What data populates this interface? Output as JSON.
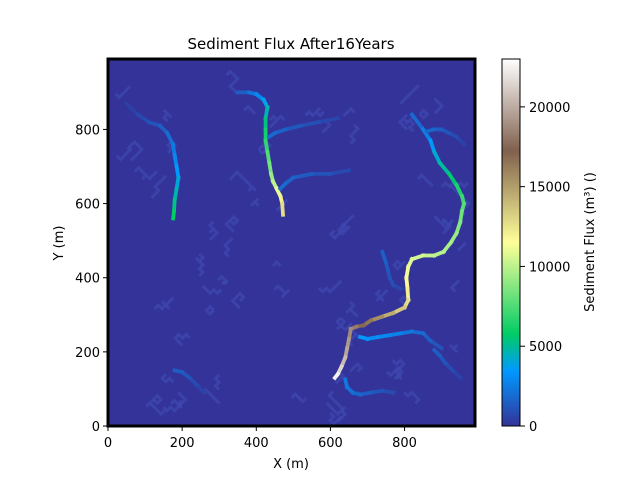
{
  "chart_data": {
    "type": "heatmap",
    "title": "Sediment Flux After16Years",
    "xlabel": "X (m)",
    "ylabel": "Y (m)",
    "xlim": [
      0,
      990
    ],
    "ylim": [
      0,
      990
    ],
    "xticks": [
      0,
      200,
      400,
      600,
      800
    ],
    "yticks": [
      0,
      200,
      400,
      600,
      800
    ],
    "colorbar": {
      "label": "Sediment Flux (m³) ()",
      "range": [
        0,
        23000
      ],
      "ticks": [
        0,
        5000,
        10000,
        15000,
        20000
      ],
      "colormap": "terrain",
      "background_color": "#333399"
    },
    "channels": [
      {
        "name": "channel-north-west",
        "points": [
          [
            50,
            870
          ],
          [
            80,
            840
          ],
          [
            110,
            820
          ],
          [
            140,
            810
          ],
          [
            160,
            790
          ],
          [
            175,
            760
          ],
          [
            180,
            730
          ],
          [
            185,
            700
          ],
          [
            190,
            670
          ],
          [
            185,
            640
          ],
          [
            180,
            610
          ],
          [
            178,
            580
          ],
          [
            176,
            560
          ]
        ],
        "flux": [
          300,
          600,
          900,
          1300,
          1700,
          2200,
          2700,
          3200,
          3700,
          4300,
          5000,
          5600,
          6000
        ]
      },
      {
        "name": "channel-north-central",
        "points": [
          [
            350,
            900
          ],
          [
            380,
            900
          ],
          [
            400,
            895
          ],
          [
            420,
            880
          ],
          [
            430,
            860
          ],
          [
            425,
            830
          ],
          [
            425,
            800
          ],
          [
            425,
            770
          ],
          [
            430,
            740
          ],
          [
            435,
            710
          ],
          [
            440,
            680
          ],
          [
            445,
            660
          ],
          [
            455,
            640
          ],
          [
            465,
            620
          ],
          [
            470,
            600
          ],
          [
            472,
            570
          ]
        ],
        "flux": [
          1200,
          1800,
          2500,
          3300,
          4200,
          5000,
          5800,
          6500,
          7200,
          8000,
          8800,
          9600,
          10500,
          11500,
          12500,
          13000
        ]
      },
      {
        "name": "channel-east-main",
        "points": [
          [
            820,
            840
          ],
          [
            850,
            800
          ],
          [
            870,
            770
          ],
          [
            880,
            740
          ],
          [
            895,
            710
          ],
          [
            920,
            680
          ],
          [
            940,
            650
          ],
          [
            955,
            620
          ],
          [
            960,
            600
          ],
          [
            955,
            580
          ],
          [
            950,
            550
          ],
          [
            940,
            520
          ],
          [
            925,
            495
          ],
          [
            905,
            470
          ],
          [
            880,
            460
          ],
          [
            850,
            460
          ],
          [
            820,
            450
          ],
          [
            810,
            430
          ],
          [
            805,
            400
          ],
          [
            808,
            370
          ],
          [
            810,
            340
          ],
          [
            800,
            320
          ],
          [
            770,
            305
          ],
          [
            740,
            295
          ],
          [
            710,
            285
          ],
          [
            690,
            272
          ],
          [
            670,
            268
          ],
          [
            655,
            262
          ],
          [
            650,
            235
          ],
          [
            645,
            210
          ],
          [
            640,
            185
          ],
          [
            630,
            160
          ],
          [
            620,
            140
          ],
          [
            612,
            130
          ]
        ],
        "flux": [
          1500,
          2200,
          3000,
          3800,
          4600,
          5300,
          6000,
          6800,
          7400,
          8000,
          8500,
          9000,
          9400,
          9700,
          10000,
          10300,
          10700,
          11000,
          11400,
          11800,
          12300,
          13000,
          14000,
          15000,
          16000,
          17000,
          18000,
          18500,
          19000,
          19500,
          20000,
          21000,
          22000,
          23000
        ]
      },
      {
        "name": "channel-south-tributary",
        "points": [
          [
            900,
            210
          ],
          [
            870,
            230
          ],
          [
            850,
            250
          ],
          [
            820,
            255
          ],
          [
            790,
            250
          ],
          [
            760,
            245
          ],
          [
            730,
            240
          ],
          [
            700,
            235
          ],
          [
            680,
            240
          ]
        ],
        "flux": [
          900,
          1300,
          1700,
          2100,
          2500,
          2800,
          3000,
          3200,
          3400
        ]
      },
      {
        "name": "channel-south-west-branch",
        "points": [
          [
            770,
            90
          ],
          [
            740,
            95
          ],
          [
            710,
            90
          ],
          [
            680,
            85
          ],
          [
            660,
            90
          ],
          [
            645,
            105
          ],
          [
            640,
            125
          ]
        ],
        "flux": [
          700,
          1000,
          1300,
          1600,
          1900,
          2200,
          2500
        ]
      },
      {
        "name": "channel-central-branch",
        "points": [
          [
            650,
            690
          ],
          [
            600,
            680
          ],
          [
            550,
            680
          ],
          [
            500,
            670
          ],
          [
            480,
            655
          ],
          [
            465,
            640
          ]
        ],
        "flux": [
          600,
          900,
          1200,
          1500,
          1800,
          2000
        ]
      },
      {
        "name": "channel-upper-branch",
        "points": [
          [
            620,
            830
          ],
          [
            570,
            820
          ],
          [
            520,
            810
          ],
          [
            480,
            800
          ],
          [
            450,
            790
          ],
          [
            435,
            780
          ]
        ],
        "flux": [
          500,
          800,
          1100,
          1400,
          1700,
          2000
        ]
      },
      {
        "name": "channel-east-upper-branch",
        "points": [
          [
            960,
            760
          ],
          [
            940,
            780
          ],
          [
            920,
            790
          ],
          [
            900,
            800
          ],
          [
            880,
            800
          ],
          [
            860,
            795
          ]
        ],
        "flux": [
          400,
          700,
          1000,
          1300,
          1600,
          1900
        ]
      },
      {
        "name": "channel-mid-east",
        "points": [
          [
            790,
            370
          ],
          [
            770,
            380
          ],
          [
            760,
            400
          ],
          [
            755,
            420
          ],
          [
            750,
            440
          ],
          [
            740,
            470
          ]
        ],
        "flux": [
          500,
          800,
          1000,
          1200,
          1400,
          1600
        ]
      },
      {
        "name": "channel-lower-west",
        "points": [
          [
            260,
            90
          ],
          [
            240,
            110
          ],
          [
            220,
            130
          ],
          [
            200,
            145
          ],
          [
            180,
            150
          ]
        ],
        "flux": [
          400,
          700,
          1000,
          1300,
          1600
        ]
      },
      {
        "name": "channel-lower-east",
        "points": [
          [
            950,
            130
          ],
          [
            930,
            150
          ],
          [
            910,
            170
          ],
          [
            895,
            190
          ],
          [
            880,
            205
          ]
        ],
        "flux": [
          400,
          700,
          1000,
          1300,
          1600
        ]
      }
    ]
  }
}
